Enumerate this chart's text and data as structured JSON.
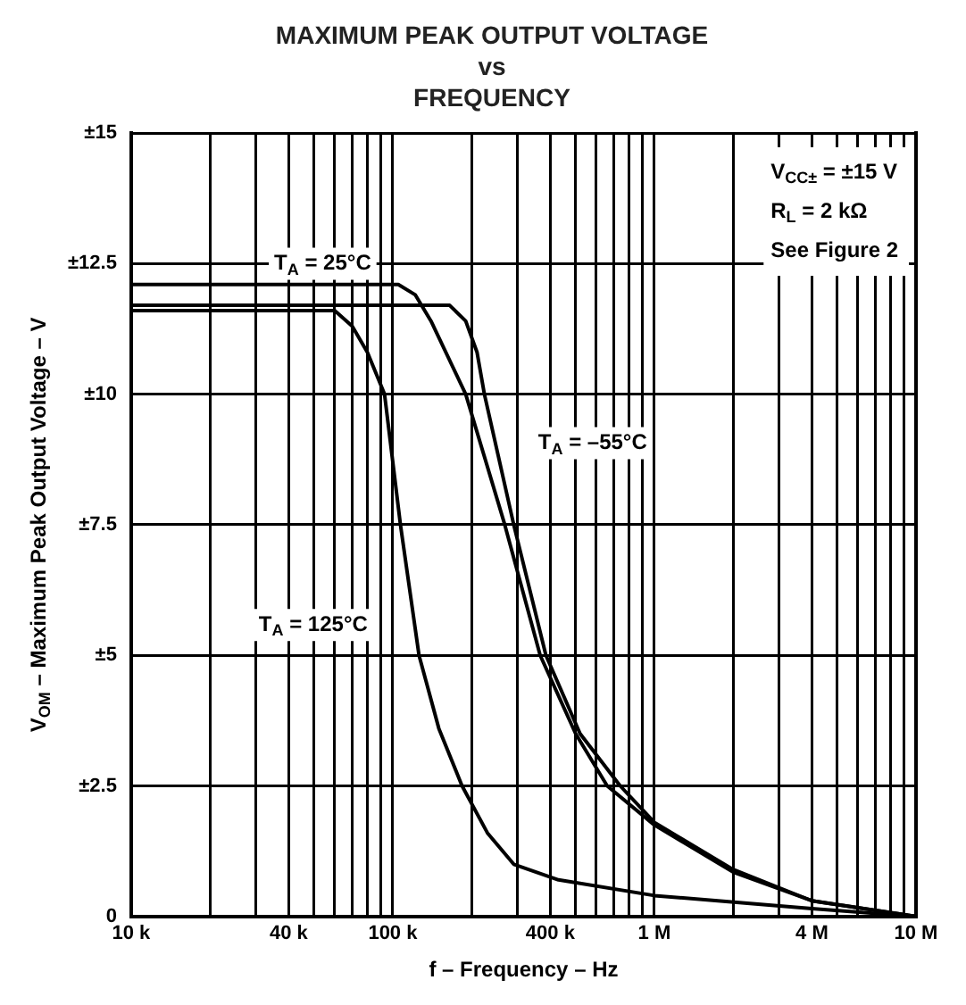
{
  "chart_data": {
    "type": "line",
    "title": "MAXIMUM PEAK OUTPUT VOLTAGE\nvs\nFREQUENCY",
    "xlabel": "f – Frequency – Hz",
    "ylabel": "V$_{OM}$ – Maximum Peak Output Voltage – V",
    "log": "x",
    "xlim": [
      10000,
      10000000
    ],
    "xticks": [
      {
        "value": 10000,
        "label": "10 k"
      },
      {
        "value": 20000,
        "label": null
      },
      {
        "value": 30000,
        "label": null
      },
      {
        "value": 40000,
        "label": "40 k"
      },
      {
        "value": 50000,
        "label": null
      },
      {
        "value": 60000,
        "label": null
      },
      {
        "value": 70000,
        "label": null
      },
      {
        "value": 80000,
        "label": null
      },
      {
        "value": 90000,
        "label": null
      },
      {
        "value": 100000,
        "label": "100 k"
      },
      {
        "value": 200000,
        "label": null
      },
      {
        "value": 300000,
        "label": null
      },
      {
        "value": 400000,
        "label": "400 k"
      },
      {
        "value": 500000,
        "label": null
      },
      {
        "value": 600000,
        "label": null
      },
      {
        "value": 700000,
        "label": null
      },
      {
        "value": 800000,
        "label": null
      },
      {
        "value": 900000,
        "label": null
      },
      {
        "value": 1000000,
        "label": "1 M"
      },
      {
        "value": 2000000,
        "label": null
      },
      {
        "value": 3000000,
        "label": null
      },
      {
        "value": 4000000,
        "label": "4 M"
      },
      {
        "value": 5000000,
        "label": null
      },
      {
        "value": 6000000,
        "label": null
      },
      {
        "value": 7000000,
        "label": null
      },
      {
        "value": 8000000,
        "label": null
      },
      {
        "value": 9000000,
        "label": null
      },
      {
        "value": 10000000,
        "label": "10 M"
      }
    ],
    "ylim": [
      0,
      15
    ],
    "yticks": [
      0,
      {
        "value": 2.5,
        "label": "±2.5"
      },
      {
        "value": 5,
        "label": "±5"
      },
      {
        "value": 7.5,
        "label": "±7.5"
      },
      {
        "value": 10,
        "label": "±10"
      },
      {
        "value": 12.5,
        "label": "±12.5"
      },
      {
        "value": 15,
        "label": "±15"
      }
    ],
    "grid": true,
    "legend": false,
    "marker": "none",
    "line_style": "solid",
    "series": [
      {
        "name": "T$_{A}$ = 125°C",
        "color": "#000000",
        "x": [
          10000,
          60000,
          70000,
          80000,
          93000,
          107000,
          126000,
          150000,
          184000,
          230000,
          290000,
          430000,
          1000000,
          4000000,
          10000000
        ],
        "values": [
          11.6,
          11.6,
          11.3,
          10.8,
          10,
          7.5,
          5.0,
          3.6,
          2.5,
          1.6,
          1.0,
          0.7,
          0.4,
          0.15,
          0
        ]
      },
      {
        "name": "T$_{A}$ = 25°C",
        "color": "#000000",
        "x": [
          10000,
          105000,
          122000,
          140000,
          190000,
          268000,
          366000,
          500000,
          660000,
          1000000,
          2000000,
          4000000,
          10000000
        ],
        "values": [
          12.1,
          12.1,
          11.9,
          11.4,
          10,
          7.5,
          5.0,
          3.5,
          2.5,
          1.75,
          0.85,
          0.3,
          0
        ]
      },
      {
        "name": "T$_{A}$ = –55°C",
        "color": "#000000",
        "x": [
          10000,
          165000,
          190000,
          210000,
          224000,
          290000,
          385000,
          520000,
          740000,
          1000000,
          2000000,
          4000000,
          10000000
        ],
        "values": [
          11.7,
          11.7,
          11.4,
          10.8,
          10,
          7.5,
          5.0,
          3.5,
          2.5,
          1.8,
          0.9,
          0.3,
          0
        ]
      }
    ],
    "annotations": [
      "V$_{CC±}$ = ±15 V",
      "R$_{L}$ = 2 kΩ",
      "See Figure 2"
    ]
  }
}
